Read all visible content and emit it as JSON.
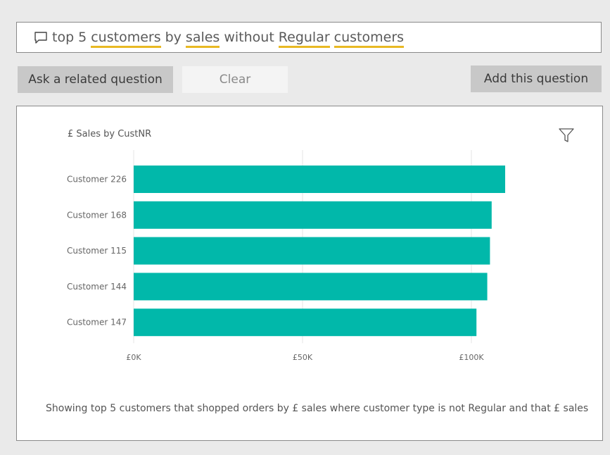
{
  "question": {
    "icon": "speech-bubble-icon",
    "tokens": [
      {
        "text": "top",
        "term": false
      },
      {
        "text": "5",
        "term": false
      },
      {
        "text": "customers",
        "term": true
      },
      {
        "text": "by",
        "term": false
      },
      {
        "text": "sales",
        "term": true
      },
      {
        "text": "without",
        "term": false
      },
      {
        "text": "Regular",
        "term": true
      },
      {
        "text": "customers",
        "term": true
      }
    ],
    "underline_color": "#e8b923"
  },
  "buttons": {
    "ask_label": "Ask a related question",
    "clear_label": "Clear",
    "add_label": "Add this question"
  },
  "chart_title": "£ Sales by CustNR",
  "filter_icon": "filter-icon",
  "chart_data": {
    "type": "bar",
    "orientation": "horizontal",
    "categories": [
      "Customer 226",
      "Customer 168",
      "Customer 115",
      "Customer 144",
      "Customer 147"
    ],
    "values": [
      110000,
      106000,
      105500,
      104700,
      101500
    ],
    "xlim": [
      0,
      130000
    ],
    "xticks": [
      0,
      50000,
      100000
    ],
    "xtick_labels": [
      "£0K",
      "£50K",
      "£100K"
    ],
    "bar_color": "#01b8aa",
    "grid": true
  },
  "caption": "Showing top 5 customers that shopped orders by £ sales where customer type is not Regular and that £ sales"
}
